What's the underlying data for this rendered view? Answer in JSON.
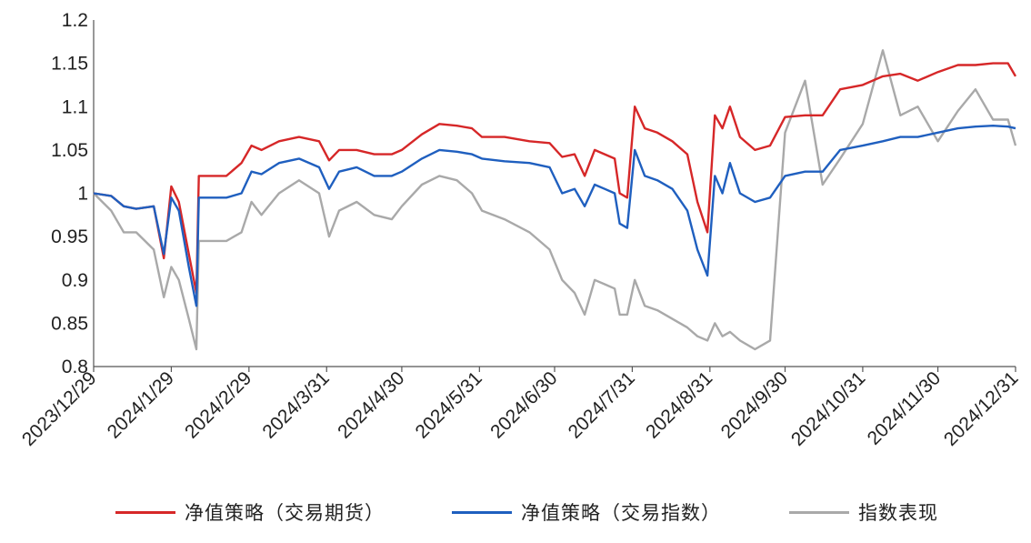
{
  "chart_data": {
    "type": "line",
    "title": "",
    "xlabel": "",
    "ylabel": "",
    "ylim": [
      0.8,
      1.2
    ],
    "y_ticks": [
      "0.8",
      "0.85",
      "0.9",
      "0.95",
      "1",
      "1.05",
      "1.1",
      "1.15",
      "1.2"
    ],
    "x_ticks": [
      "2023/12/29",
      "2024/1/29",
      "2024/2/29",
      "2024/3/31",
      "2024/4/30",
      "2024/5/31",
      "2024/6/30",
      "2024/7/31",
      "2024/8/31",
      "2024/9/30",
      "2024/10/31",
      "2024/11/30",
      "2024/12/31"
    ],
    "grid": false,
    "legend_position": "bottom",
    "series": [
      {
        "name": "净值策略（交易期货）",
        "color": "#d62728",
        "points": [
          [
            "2023/12/29",
            1.0
          ],
          [
            "2024/1/5",
            0.997
          ],
          [
            "2024/1/10",
            0.985
          ],
          [
            "2024/1/15",
            0.982
          ],
          [
            "2024/1/22",
            0.985
          ],
          [
            "2024/1/26",
            0.925
          ],
          [
            "2024/1/29",
            1.008
          ],
          [
            "2024/2/1",
            0.99
          ],
          [
            "2024/2/5",
            0.93
          ],
          [
            "2024/2/8",
            0.885
          ],
          [
            "2024/2/9",
            1.02
          ],
          [
            "2024/2/20",
            1.02
          ],
          [
            "2024/2/26",
            1.035
          ],
          [
            "2024/3/1",
            1.055
          ],
          [
            "2024/3/5",
            1.05
          ],
          [
            "2024/3/12",
            1.06
          ],
          [
            "2024/3/20",
            1.065
          ],
          [
            "2024/3/28",
            1.06
          ],
          [
            "2024/4/1",
            1.038
          ],
          [
            "2024/4/5",
            1.05
          ],
          [
            "2024/4/12",
            1.05
          ],
          [
            "2024/4/19",
            1.045
          ],
          [
            "2024/4/26",
            1.045
          ],
          [
            "2024/4/30",
            1.05
          ],
          [
            "2024/5/8",
            1.068
          ],
          [
            "2024/5/15",
            1.08
          ],
          [
            "2024/5/22",
            1.078
          ],
          [
            "2024/5/28",
            1.075
          ],
          [
            "2024/6/1",
            1.065
          ],
          [
            "2024/6/10",
            1.065
          ],
          [
            "2024/6/20",
            1.06
          ],
          [
            "2024/6/28",
            1.058
          ],
          [
            "2024/7/3",
            1.042
          ],
          [
            "2024/7/8",
            1.045
          ],
          [
            "2024/7/12",
            1.02
          ],
          [
            "2024/7/16",
            1.05
          ],
          [
            "2024/7/20",
            1.045
          ],
          [
            "2024/7/24",
            1.04
          ],
          [
            "2024/7/26",
            1.0
          ],
          [
            "2024/7/29",
            0.995
          ],
          [
            "2024/8/1",
            1.1
          ],
          [
            "2024/8/5",
            1.075
          ],
          [
            "2024/8/10",
            1.07
          ],
          [
            "2024/8/16",
            1.06
          ],
          [
            "2024/8/22",
            1.045
          ],
          [
            "2024/8/26",
            0.99
          ],
          [
            "2024/8/30",
            0.955
          ],
          [
            "2024/9/2",
            1.09
          ],
          [
            "2024/9/5",
            1.075
          ],
          [
            "2024/9/8",
            1.1
          ],
          [
            "2024/9/12",
            1.065
          ],
          [
            "2024/9/18",
            1.05
          ],
          [
            "2024/9/24",
            1.055
          ],
          [
            "2024/9/30",
            1.088
          ],
          [
            "2024/10/8",
            1.09
          ],
          [
            "2024/10/15",
            1.09
          ],
          [
            "2024/10/22",
            1.12
          ],
          [
            "2024/10/31",
            1.125
          ],
          [
            "2024/11/8",
            1.135
          ],
          [
            "2024/11/15",
            1.138
          ],
          [
            "2024/11/22",
            1.13
          ],
          [
            "2024/11/30",
            1.14
          ],
          [
            "2024/12/8",
            1.148
          ],
          [
            "2024/12/15",
            1.148
          ],
          [
            "2024/12/22",
            1.15
          ],
          [
            "2024/12/28",
            1.15
          ],
          [
            "2024/12/31",
            1.135
          ]
        ]
      },
      {
        "name": "净值策略（交易指数）",
        "color": "#1f5fbf",
        "points": [
          [
            "2023/12/29",
            1.0
          ],
          [
            "2024/1/5",
            0.997
          ],
          [
            "2024/1/10",
            0.985
          ],
          [
            "2024/1/15",
            0.982
          ],
          [
            "2024/1/22",
            0.985
          ],
          [
            "2024/1/26",
            0.93
          ],
          [
            "2024/1/29",
            0.995
          ],
          [
            "2024/2/1",
            0.98
          ],
          [
            "2024/2/5",
            0.915
          ],
          [
            "2024/2/8",
            0.87
          ],
          [
            "2024/2/9",
            0.995
          ],
          [
            "2024/2/20",
            0.995
          ],
          [
            "2024/2/26",
            1.0
          ],
          [
            "2024/3/1",
            1.025
          ],
          [
            "2024/3/5",
            1.022
          ],
          [
            "2024/3/12",
            1.035
          ],
          [
            "2024/3/20",
            1.04
          ],
          [
            "2024/3/28",
            1.03
          ],
          [
            "2024/4/1",
            1.005
          ],
          [
            "2024/4/5",
            1.025
          ],
          [
            "2024/4/12",
            1.03
          ],
          [
            "2024/4/19",
            1.02
          ],
          [
            "2024/4/26",
            1.02
          ],
          [
            "2024/4/30",
            1.025
          ],
          [
            "2024/5/8",
            1.04
          ],
          [
            "2024/5/15",
            1.05
          ],
          [
            "2024/5/22",
            1.048
          ],
          [
            "2024/5/28",
            1.045
          ],
          [
            "2024/6/1",
            1.04
          ],
          [
            "2024/6/10",
            1.037
          ],
          [
            "2024/6/20",
            1.035
          ],
          [
            "2024/6/28",
            1.03
          ],
          [
            "2024/7/3",
            1.0
          ],
          [
            "2024/7/8",
            1.005
          ],
          [
            "2024/7/12",
            0.985
          ],
          [
            "2024/7/16",
            1.01
          ],
          [
            "2024/7/20",
            1.005
          ],
          [
            "2024/7/24",
            1.0
          ],
          [
            "2024/7/26",
            0.965
          ],
          [
            "2024/7/29",
            0.96
          ],
          [
            "2024/8/1",
            1.05
          ],
          [
            "2024/8/5",
            1.02
          ],
          [
            "2024/8/10",
            1.015
          ],
          [
            "2024/8/16",
            1.005
          ],
          [
            "2024/8/22",
            0.98
          ],
          [
            "2024/8/26",
            0.935
          ],
          [
            "2024/8/30",
            0.905
          ],
          [
            "2024/9/2",
            1.02
          ],
          [
            "2024/9/5",
            1.0
          ],
          [
            "2024/9/8",
            1.035
          ],
          [
            "2024/9/12",
            1.0
          ],
          [
            "2024/9/18",
            0.99
          ],
          [
            "2024/9/24",
            0.995
          ],
          [
            "2024/9/30",
            1.02
          ],
          [
            "2024/10/8",
            1.025
          ],
          [
            "2024/10/15",
            1.025
          ],
          [
            "2024/10/22",
            1.05
          ],
          [
            "2024/10/31",
            1.055
          ],
          [
            "2024/11/8",
            1.06
          ],
          [
            "2024/11/15",
            1.065
          ],
          [
            "2024/11/22",
            1.065
          ],
          [
            "2024/11/30",
            1.07
          ],
          [
            "2024/12/8",
            1.075
          ],
          [
            "2024/12/15",
            1.077
          ],
          [
            "2024/12/22",
            1.078
          ],
          [
            "2024/12/28",
            1.077
          ],
          [
            "2024/12/31",
            1.075
          ]
        ]
      },
      {
        "name": "指数表现",
        "color": "#a9a9a9",
        "points": [
          [
            "2023/12/29",
            1.0
          ],
          [
            "2024/1/5",
            0.98
          ],
          [
            "2024/1/10",
            0.955
          ],
          [
            "2024/1/15",
            0.955
          ],
          [
            "2024/1/22",
            0.935
          ],
          [
            "2024/1/26",
            0.88
          ],
          [
            "2024/1/29",
            0.915
          ],
          [
            "2024/2/1",
            0.9
          ],
          [
            "2024/2/5",
            0.855
          ],
          [
            "2024/2/8",
            0.82
          ],
          [
            "2024/2/9",
            0.945
          ],
          [
            "2024/2/20",
            0.945
          ],
          [
            "2024/2/26",
            0.955
          ],
          [
            "2024/3/1",
            0.99
          ],
          [
            "2024/3/5",
            0.975
          ],
          [
            "2024/3/12",
            1.0
          ],
          [
            "2024/3/20",
            1.015
          ],
          [
            "2024/3/28",
            1.0
          ],
          [
            "2024/4/1",
            0.95
          ],
          [
            "2024/4/5",
            0.98
          ],
          [
            "2024/4/12",
            0.99
          ],
          [
            "2024/4/19",
            0.975
          ],
          [
            "2024/4/26",
            0.97
          ],
          [
            "2024/4/30",
            0.985
          ],
          [
            "2024/5/8",
            1.01
          ],
          [
            "2024/5/15",
            1.02
          ],
          [
            "2024/5/22",
            1.015
          ],
          [
            "2024/5/28",
            1.0
          ],
          [
            "2024/6/1",
            0.98
          ],
          [
            "2024/6/10",
            0.97
          ],
          [
            "2024/6/20",
            0.955
          ],
          [
            "2024/6/28",
            0.935
          ],
          [
            "2024/7/3",
            0.9
          ],
          [
            "2024/7/8",
            0.885
          ],
          [
            "2024/7/12",
            0.86
          ],
          [
            "2024/7/16",
            0.9
          ],
          [
            "2024/7/20",
            0.895
          ],
          [
            "2024/7/24",
            0.89
          ],
          [
            "2024/7/26",
            0.86
          ],
          [
            "2024/7/29",
            0.86
          ],
          [
            "2024/8/1",
            0.9
          ],
          [
            "2024/8/5",
            0.87
          ],
          [
            "2024/8/10",
            0.865
          ],
          [
            "2024/8/16",
            0.855
          ],
          [
            "2024/8/22",
            0.845
          ],
          [
            "2024/8/26",
            0.835
          ],
          [
            "2024/8/30",
            0.83
          ],
          [
            "2024/9/2",
            0.85
          ],
          [
            "2024/9/5",
            0.835
          ],
          [
            "2024/9/8",
            0.84
          ],
          [
            "2024/9/12",
            0.83
          ],
          [
            "2024/9/18",
            0.82
          ],
          [
            "2024/9/24",
            0.83
          ],
          [
            "2024/9/30",
            1.07
          ],
          [
            "2024/10/8",
            1.13
          ],
          [
            "2024/10/15",
            1.01
          ],
          [
            "2024/10/22",
            1.04
          ],
          [
            "2024/10/31",
            1.08
          ],
          [
            "2024/11/8",
            1.165
          ],
          [
            "2024/11/15",
            1.09
          ],
          [
            "2024/11/22",
            1.1
          ],
          [
            "2024/11/30",
            1.06
          ],
          [
            "2024/12/8",
            1.095
          ],
          [
            "2024/12/15",
            1.12
          ],
          [
            "2024/12/22",
            1.085
          ],
          [
            "2024/12/28",
            1.085
          ],
          [
            "2024/12/31",
            1.055
          ]
        ]
      }
    ]
  }
}
